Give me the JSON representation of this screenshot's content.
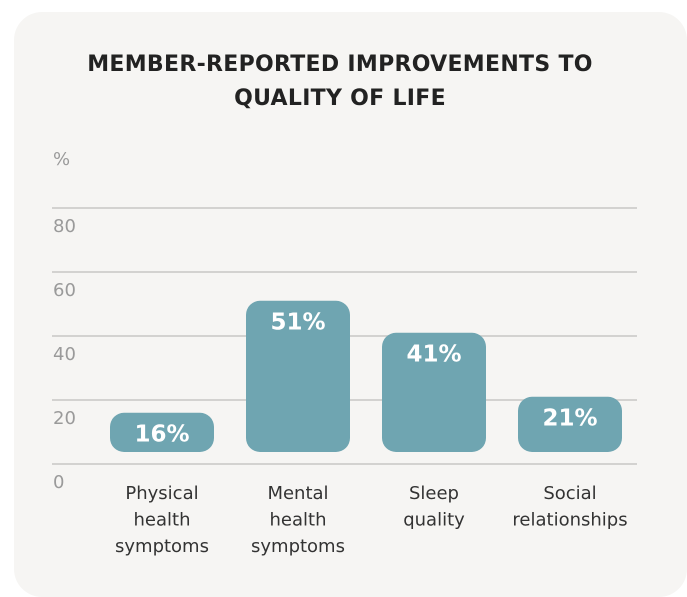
{
  "chart_data": {
    "type": "bar",
    "title": "MEMBER-REPORTED IMPROVEMENTS TO QUALITY OF LIFE",
    "y_label": "%",
    "categories": [
      "Physical health symptoms",
      "Mental health symptoms",
      "Sleep quality",
      "Social relationships"
    ],
    "values": [
      16,
      51,
      41,
      21
    ],
    "value_labels": [
      "16%",
      "51%",
      "41%",
      "21%"
    ],
    "color": "#6fa5b1",
    "ylim": [
      0,
      80
    ],
    "yticks": [
      0,
      20,
      40,
      60,
      80
    ],
    "grid": true
  }
}
